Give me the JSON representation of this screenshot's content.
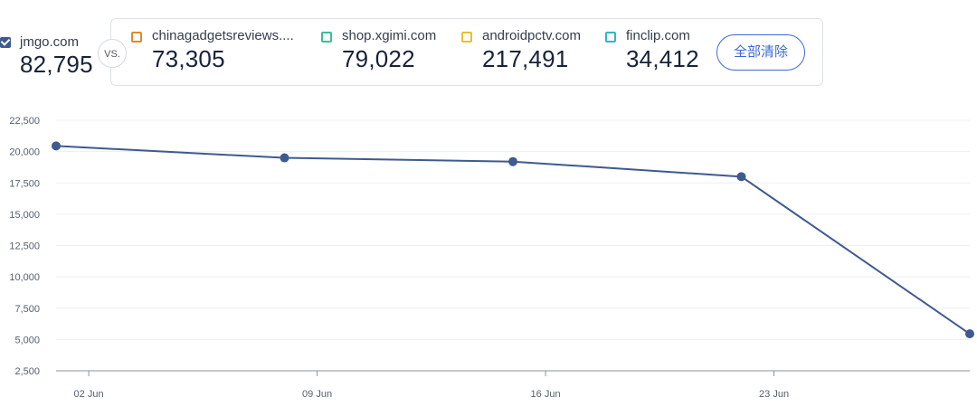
{
  "primary": {
    "name": "jmgo.com",
    "value": "82,795",
    "checked": true,
    "color": "#3e5a8f"
  },
  "vs_label": "VS.",
  "competitors": [
    {
      "name": "chinagadgetsreviews....",
      "value": "73,305",
      "color": "#e08a2c"
    },
    {
      "name": "shop.xgimi.com",
      "value": "79,022",
      "color": "#3cbf8f"
    },
    {
      "name": "androidpctv.com",
      "value": "217,491",
      "color": "#e8c030"
    },
    {
      "name": "finclip.com",
      "value": "34,412",
      "color": "#33b5c8"
    }
  ],
  "clear_all_label": "全部清除",
  "chart_data": {
    "type": "line",
    "x_ticks": [
      "02 Jun",
      "09 Jun",
      "16 Jun",
      "23 Jun"
    ],
    "y_ticks": [
      "2,500",
      "5,000",
      "7,500",
      "10,000",
      "12,500",
      "15,000",
      "17,500",
      "20,000",
      "22,500"
    ],
    "ylim": [
      2500,
      22500
    ],
    "grid": true,
    "series": [
      {
        "name": "jmgo.com",
        "color": "#3e5a8f",
        "points": [
          {
            "x": "2024-06-01",
            "y": 20450
          },
          {
            "x": "2024-06-08",
            "y": 19500
          },
          {
            "x": "2024-06-15",
            "y": 19200
          },
          {
            "x": "2024-06-22",
            "y": 18000
          },
          {
            "x": "2024-06-29",
            "y": 5450
          }
        ]
      }
    ]
  }
}
